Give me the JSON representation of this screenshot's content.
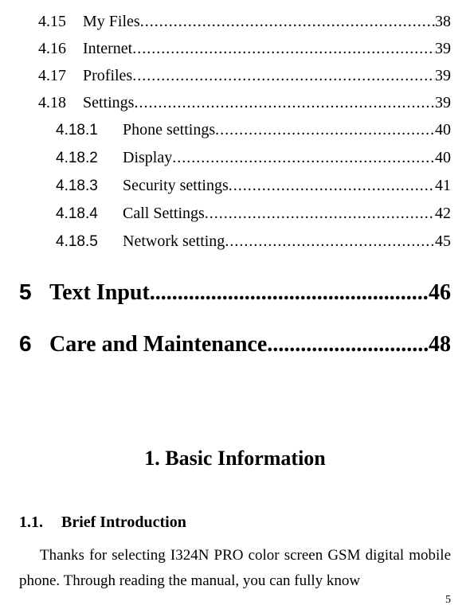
{
  "toc": {
    "l2": [
      {
        "num": "4.15",
        "title": "My Files",
        "page": "38"
      },
      {
        "num": "4.16",
        "title": "Internet",
        "page": "39"
      },
      {
        "num": "4.17",
        "title": "Profiles",
        "page": "39"
      },
      {
        "num": "4.18",
        "title": "Settings",
        "page": "39"
      }
    ],
    "l3": [
      {
        "num": "4.18.1",
        "title": "Phone settings",
        "page": "40"
      },
      {
        "num": "4.18.2",
        "title": "Display",
        "page": "40"
      },
      {
        "num": "4.18.3",
        "title": "Security settings",
        "page": "41"
      },
      {
        "num": "4.18.4",
        "title": "Call Settings",
        "page": "42"
      },
      {
        "num": "4.18.5",
        "title": "Network setting",
        "page": "45"
      }
    ],
    "l1": [
      {
        "num": "5",
        "title": "Text Input",
        "page": "46"
      },
      {
        "num": "6",
        "title": "Care and Maintenance",
        "page": "48"
      }
    ]
  },
  "body": {
    "chapter_heading": "1.   Basic Information",
    "section_num": "1.1.",
    "section_title": "Brief Introduction",
    "paragraph": "Thanks for selecting I324N PRO color screen GSM digital mobile phone. Through reading the manual, you can fully know"
  },
  "page_number": "5"
}
